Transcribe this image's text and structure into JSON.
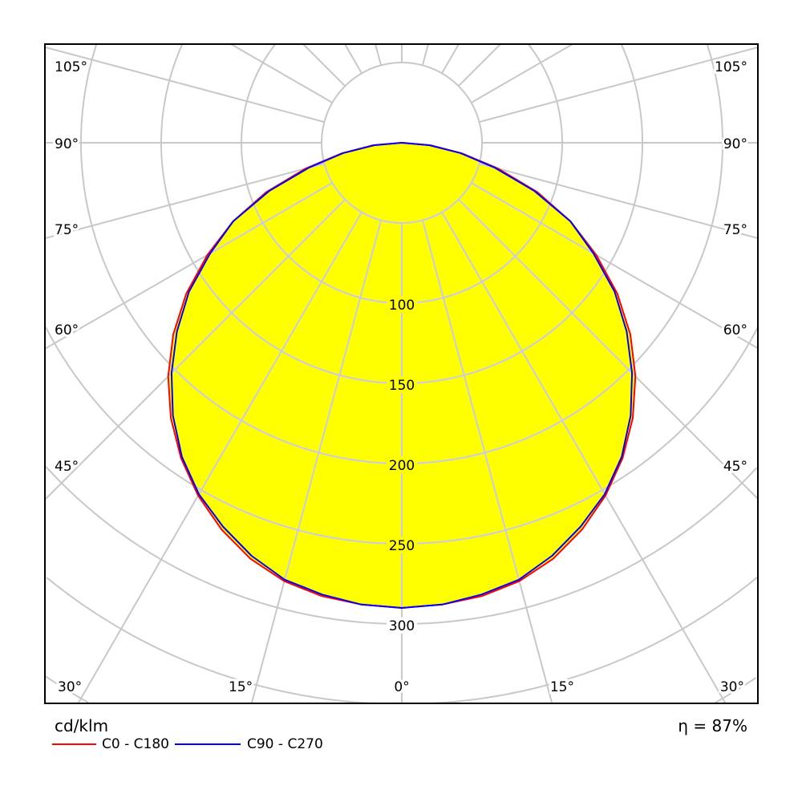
{
  "chart_data": {
    "type": "polar",
    "unit_label": "cd/klm",
    "efficiency_label": "η = 87%",
    "radial_ticks": [
      100,
      150,
      200,
      250,
      300
    ],
    "radial_grid_step": 50,
    "angle_labels_left": [
      "105°",
      "90°",
      "75°",
      "60°",
      "45°",
      "30°",
      "15°"
    ],
    "angle_label_bottom": "0°",
    "angle_labels_right": [
      "105°",
      "90°",
      "75°",
      "60°",
      "45°",
      "30°",
      "15°"
    ],
    "angles": [
      0,
      5,
      10,
      15,
      20,
      25,
      30,
      35,
      40,
      45,
      50,
      55,
      60,
      65,
      70,
      75,
      80,
      85,
      90
    ],
    "series": [
      {
        "name": "C0 - C180",
        "color": "#ff0000",
        "values": [
          290,
          289,
          287,
          283,
          276,
          266,
          254,
          240,
          224,
          206,
          186,
          164,
          140,
          116,
          90,
          62,
          38,
          18,
          0
        ]
      },
      {
        "name": "C90 - C270",
        "color": "#0000ff",
        "values": [
          290,
          289,
          286,
          282,
          274,
          264,
          253,
          239,
          222,
          203,
          183,
          162,
          138,
          116,
          88,
          60,
          37,
          17,
          0
        ]
      }
    ],
    "fill_color": "#ffff00",
    "grid": true
  }
}
